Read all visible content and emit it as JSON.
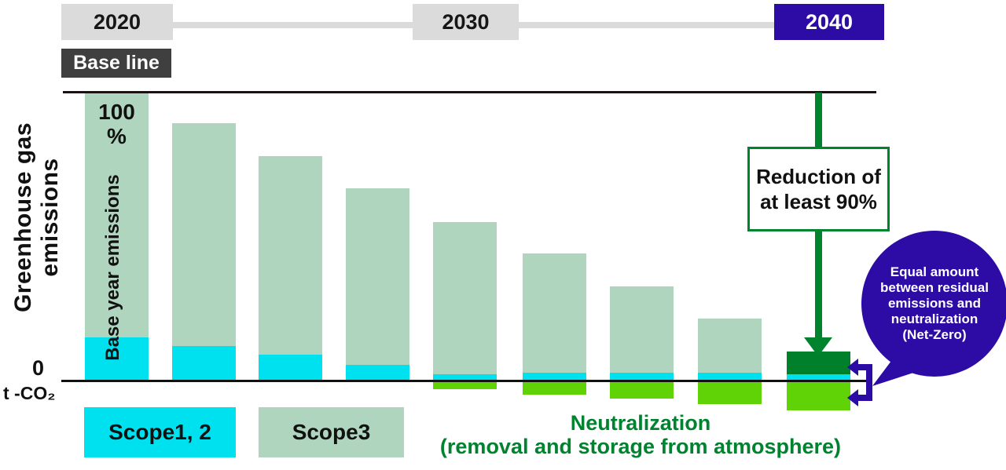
{
  "timeline": {
    "years": [
      {
        "label": "2020"
      },
      {
        "label": "2030"
      },
      {
        "label": "2040"
      }
    ],
    "baseline_label": "Base line"
  },
  "axis": {
    "y_title_line1": "Greenhouse gas",
    "y_title_line2": "emissions",
    "top_value": "100",
    "top_unit": "%",
    "zero_label": "0",
    "unit_label": "t -CO₂",
    "base_year_annotation": "Base year emissions"
  },
  "legend": {
    "scope12_label": "Scope1, 2",
    "scope3_label": "Scope3",
    "neutralization_line1": "Neutralization",
    "neutralization_line2": "(removal and storage from atmosphere)"
  },
  "annotations": {
    "reduction_line1": "Reduction of",
    "reduction_line2": "at least 90%",
    "netzero_lines": [
      "Equal amount",
      "between residual",
      "emissions and",
      "neutralization",
      "(Net-Zero)"
    ]
  },
  "colors": {
    "scope12": "#00E1EF",
    "scope3": "#B0D5BE",
    "neutralization": "#5FD306",
    "residual": "#00802B",
    "green_accent": "#00832D",
    "purple": "#2D0CA6",
    "timeline_gray": "#DBDBDB",
    "baseline_bg": "#3F3F3F"
  },
  "chart_data": {
    "type": "bar",
    "stacked": true,
    "ylabel": "Greenhouse gas emissions",
    "y_unit": "% of base year emissions (t-CO₂)",
    "ylim": [
      -12,
      100
    ],
    "x_range_labels": [
      "2020 (Base line)",
      "2030",
      "2040"
    ],
    "series_names": [
      "Scope1, 2",
      "Scope3",
      "Residual emissions",
      "Neutralization (removal and storage from atmosphere)"
    ],
    "bars": [
      {
        "scope12": 14.9,
        "scope3": 85.1,
        "residual": 0,
        "neutralization": 0
      },
      {
        "scope12": 11.9,
        "scope3": 77.2,
        "residual": 0,
        "neutralization": 0
      },
      {
        "scope12": 8.9,
        "scope3": 68.8,
        "residual": 0,
        "neutralization": 0
      },
      {
        "scope12": 5.4,
        "scope3": 61.2,
        "residual": 0,
        "neutralization": 0
      },
      {
        "scope12": 2.2,
        "scope3": 52.8,
        "residual": 0,
        "neutralization": 3.0
      },
      {
        "scope12": 2.7,
        "scope3": 41.2,
        "residual": 0,
        "neutralization": 4.9
      },
      {
        "scope12": 2.7,
        "scope3": 29.8,
        "residual": 0,
        "neutralization": 6.2
      },
      {
        "scope12": 2.7,
        "scope3": 18.7,
        "residual": 0,
        "neutralization": 8.1
      },
      {
        "scope12": 2.2,
        "scope3": 0,
        "residual": 7.9,
        "neutralization": 10.3
      }
    ],
    "notes": [
      "Reduction of at least 90%",
      "Equal amount between residual emissions and neutralization (Net-Zero)"
    ]
  }
}
